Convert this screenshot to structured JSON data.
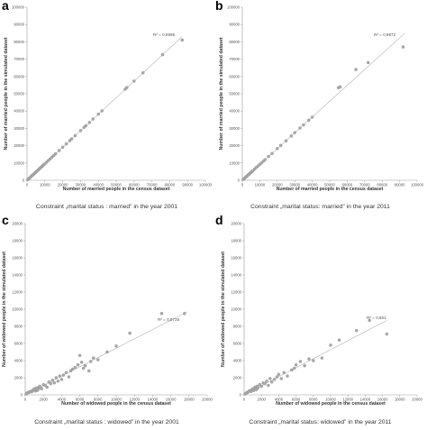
{
  "panels": [
    {
      "letter": "a",
      "caption": "Constraint „marital status : married” in the year 2001",
      "chart_data": {
        "type": "scatter",
        "xlabel": "Number of married people in the census dataset",
        "ylabel": "Number of married people in the simulated dataset",
        "xlim": [
          0,
          100000
        ],
        "ylim": [
          0,
          100000
        ],
        "xticks": [
          0,
          10000,
          20000,
          30000,
          40000,
          50000,
          60000,
          70000,
          80000,
          90000,
          100000
        ],
        "yticks": [
          0,
          10000,
          20000,
          30000,
          40000,
          50000,
          60000,
          70000,
          80000,
          90000,
          100000
        ],
        "r2_label": "R² = 0,9995",
        "trendline": [
          [
            0,
            0
          ],
          [
            87000,
            83000
          ]
        ],
        "points": [
          [
            500,
            400
          ],
          [
            1000,
            900
          ],
          [
            1500,
            1400
          ],
          [
            2000,
            1900
          ],
          [
            2500,
            2400
          ],
          [
            3000,
            2900
          ],
          [
            3500,
            3300
          ],
          [
            4000,
            3800
          ],
          [
            4500,
            4300
          ],
          [
            5000,
            4800
          ],
          [
            5500,
            5300
          ],
          [
            6000,
            5700
          ],
          [
            6500,
            6200
          ],
          [
            7000,
            6700
          ],
          [
            7500,
            7200
          ],
          [
            8000,
            7600
          ],
          [
            8500,
            8100
          ],
          [
            9000,
            8600
          ],
          [
            9500,
            9100
          ],
          [
            10000,
            9500
          ],
          [
            11000,
            10500
          ],
          [
            12000,
            11500
          ],
          [
            13000,
            12400
          ],
          [
            14000,
            13400
          ],
          [
            15000,
            14300
          ],
          [
            16000,
            15300
          ],
          [
            18000,
            17200
          ],
          [
            20000,
            19100
          ],
          [
            22000,
            21000
          ],
          [
            24000,
            22900
          ],
          [
            25000,
            23900
          ],
          [
            27000,
            25800
          ],
          [
            30000,
            28700
          ],
          [
            32000,
            30600
          ],
          [
            33000,
            31500
          ],
          [
            35000,
            33400
          ],
          [
            37000,
            35400
          ],
          [
            40000,
            38200
          ],
          [
            42000,
            40100
          ],
          [
            55000,
            52600
          ],
          [
            56000,
            53600
          ],
          [
            60000,
            57300
          ],
          [
            65000,
            62100
          ],
          [
            76000,
            72600
          ],
          [
            87000,
            81000
          ]
        ],
        "colors": {
          "points": "#a9a9a9",
          "line": "#b3b3b3",
          "axis": "#999999"
        }
      }
    },
    {
      "letter": "b",
      "caption": "Constraint „marital status: married” in the year 2011",
      "chart_data": {
        "type": "scatter",
        "xlabel": "Number of married people in the census dataset",
        "ylabel": "Number of married people in the simulated dataset",
        "xlim": [
          0,
          100000
        ],
        "ylim": [
          0,
          100000
        ],
        "xticks": [
          0,
          10000,
          20000,
          30000,
          40000,
          50000,
          60000,
          70000,
          80000,
          90000,
          100000
        ],
        "yticks": [
          0,
          10000,
          20000,
          30000,
          40000,
          50000,
          60000,
          70000,
          80000,
          90000,
          100000
        ],
        "r2_label": "R² = 0,9972",
        "trendline": [
          [
            0,
            0
          ],
          [
            93000,
            85000
          ]
        ],
        "points": [
          [
            500,
            500
          ],
          [
            1000,
            900
          ],
          [
            1500,
            1400
          ],
          [
            2000,
            1900
          ],
          [
            2500,
            2300
          ],
          [
            3000,
            2800
          ],
          [
            3500,
            3200
          ],
          [
            4000,
            3700
          ],
          [
            4500,
            4100
          ],
          [
            5000,
            4600
          ],
          [
            5500,
            5000
          ],
          [
            6000,
            5500
          ],
          [
            7000,
            6500
          ],
          [
            8000,
            7400
          ],
          [
            9000,
            8300
          ],
          [
            10000,
            9200
          ],
          [
            11000,
            10000
          ],
          [
            12000,
            11000
          ],
          [
            13000,
            11900
          ],
          [
            15000,
            13800
          ],
          [
            17000,
            15500
          ],
          [
            20000,
            18300
          ],
          [
            22000,
            20100
          ],
          [
            25000,
            22800
          ],
          [
            28000,
            25600
          ],
          [
            30000,
            27500
          ],
          [
            33000,
            30200
          ],
          [
            35000,
            32000
          ],
          [
            38000,
            34700
          ],
          [
            40000,
            36500
          ],
          [
            55000,
            53500
          ],
          [
            56000,
            54000
          ],
          [
            65000,
            64000
          ],
          [
            72000,
            68000
          ],
          [
            92000,
            77000
          ]
        ],
        "colors": {
          "points": "#a9a9a9",
          "line": "#b3b3b3",
          "axis": "#999999"
        }
      }
    },
    {
      "letter": "c",
      "caption": "Constraint „marital status : widowed” in the year 2001",
      "chart_data": {
        "type": "scatter",
        "xlabel": "Number of widowed people in the census dataset",
        "ylabel": "Number of widowed people in the simulated dataset",
        "xlim": [
          0,
          20000
        ],
        "ylim": [
          0,
          20000
        ],
        "xticks": [
          0,
          2000,
          4000,
          6000,
          8000,
          10000,
          12000,
          14000,
          16000,
          18000,
          20000
        ],
        "yticks": [
          0,
          2000,
          4000,
          6000,
          8000,
          10000,
          12000,
          14000,
          16000,
          18000,
          20000
        ],
        "r2_label": "R² = 0,9726",
        "trendline": [
          [
            0,
            0
          ],
          [
            17800,
            9700
          ]
        ],
        "points": [
          [
            100,
            100
          ],
          [
            200,
            200
          ],
          [
            300,
            250
          ],
          [
            400,
            300
          ],
          [
            500,
            350
          ],
          [
            600,
            400
          ],
          [
            700,
            350
          ],
          [
            800,
            500
          ],
          [
            900,
            600
          ],
          [
            1000,
            700
          ],
          [
            1100,
            450
          ],
          [
            1200,
            800
          ],
          [
            1300,
            500
          ],
          [
            1400,
            600
          ],
          [
            1500,
            900
          ],
          [
            1600,
            1000
          ],
          [
            1700,
            800
          ],
          [
            1800,
            700
          ],
          [
            2000,
            1200
          ],
          [
            2200,
            1100
          ],
          [
            2400,
            900
          ],
          [
            2600,
            1500
          ],
          [
            2800,
            1300
          ],
          [
            3000,
            1700
          ],
          [
            3200,
            1400
          ],
          [
            3400,
            2000
          ],
          [
            3600,
            1600
          ],
          [
            3800,
            2200
          ],
          [
            4000,
            1800
          ],
          [
            4200,
            2300
          ],
          [
            4500,
            2600
          ],
          [
            4800,
            2100
          ],
          [
            5000,
            2800
          ],
          [
            5200,
            3000
          ],
          [
            5500,
            3200
          ],
          [
            5800,
            3500
          ],
          [
            6000,
            4600
          ],
          [
            6200,
            3800
          ],
          [
            6400,
            3100
          ],
          [
            6600,
            3400
          ],
          [
            7000,
            2800
          ],
          [
            7200,
            3900
          ],
          [
            7500,
            4300
          ],
          [
            8000,
            4100
          ],
          [
            9000,
            5000
          ],
          [
            10000,
            5700
          ],
          [
            11500,
            7200
          ],
          [
            15000,
            9500
          ],
          [
            17500,
            9500
          ]
        ],
        "colors": {
          "points": "#a9a9a9",
          "line": "#b3b3b3",
          "axis": "#999999"
        }
      }
    },
    {
      "letter": "d",
      "caption": "Constraint „marital status: widowed” in the year 2011",
      "chart_data": {
        "type": "scatter",
        "xlabel": "Number of widowed people in the census dataset",
        "ylabel": "Number of widowed people in the simulated dataset",
        "xlim": [
          0,
          20000
        ],
        "ylim": [
          0,
          20000
        ],
        "xticks": [
          0,
          2000,
          4000,
          6000,
          8000,
          10000,
          12000,
          14000,
          16000,
          18000,
          20000
        ],
        "yticks": [
          0,
          2000,
          4000,
          6000,
          8000,
          10000,
          12000,
          14000,
          16000,
          18000,
          20000
        ],
        "r2_label": "R² = 0,861",
        "trendline": [
          [
            0,
            0
          ],
          [
            16500,
            8700
          ]
        ],
        "points": [
          [
            100,
            100
          ],
          [
            200,
            150
          ],
          [
            300,
            250
          ],
          [
            400,
            300
          ],
          [
            500,
            350
          ],
          [
            600,
            450
          ],
          [
            700,
            500
          ],
          [
            800,
            400
          ],
          [
            900,
            600
          ],
          [
            1000,
            700
          ],
          [
            1100,
            500
          ],
          [
            1200,
            800
          ],
          [
            1300,
            900
          ],
          [
            1400,
            600
          ],
          [
            1500,
            1000
          ],
          [
            1600,
            800
          ],
          [
            1800,
            1200
          ],
          [
            2000,
            1000
          ],
          [
            2200,
            1400
          ],
          [
            2400,
            1300
          ],
          [
            2600,
            1600
          ],
          [
            2800,
            1100
          ],
          [
            3000,
            1900
          ],
          [
            3200,
            1500
          ],
          [
            3500,
            1800
          ],
          [
            3800,
            2100
          ],
          [
            4000,
            2400
          ],
          [
            4300,
            1900
          ],
          [
            4600,
            2600
          ],
          [
            5000,
            2200
          ],
          [
            5500,
            2900
          ],
          [
            5800,
            3100
          ],
          [
            6000,
            3500
          ],
          [
            6500,
            3900
          ],
          [
            7000,
            3400
          ],
          [
            7500,
            4200
          ],
          [
            8000,
            4000
          ],
          [
            9000,
            4300
          ],
          [
            10000,
            5800
          ],
          [
            11000,
            6400
          ],
          [
            13000,
            7500
          ],
          [
            14500,
            8700
          ],
          [
            16500,
            7100
          ]
        ],
        "colors": {
          "points": "#a9a9a9",
          "line": "#b3b3b3",
          "axis": "#999999"
        }
      }
    }
  ]
}
